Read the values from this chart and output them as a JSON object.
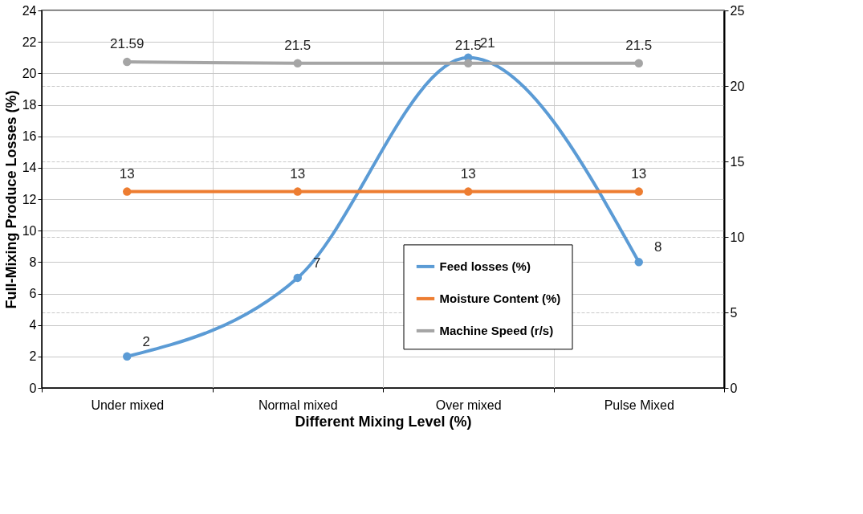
{
  "chart_data": {
    "type": "line",
    "xlabel": "Different Mixing Level (%)",
    "ylabel": "Full-Mixing Produce Losses (%)",
    "categories": [
      "Under mixed",
      "Normal mixed",
      "Over mixed",
      "Pulse Mixed"
    ],
    "series": [
      {
        "name": "Feed losses (%)",
        "color": "#5b9bd5",
        "values": [
          2,
          7,
          21,
          8
        ]
      },
      {
        "name": "Moisture Content (%)",
        "color": "#ed7d31",
        "values": [
          13,
          13,
          13,
          13
        ],
        "axis": "y2"
      },
      {
        "name": "Machine Speed (r/s)",
        "color": "#a5a5a5",
        "values": [
          21.59,
          21.5,
          21.5,
          21.5
        ],
        "axis": "y2"
      }
    ],
    "ylim": [
      0,
      24
    ],
    "yticks": [
      0,
      2,
      4,
      6,
      8,
      10,
      12,
      14,
      16,
      18,
      20,
      22,
      24
    ],
    "y2lim": [
      0,
      25
    ],
    "y2ticks": [
      0,
      5,
      10,
      15,
      20,
      25
    ],
    "data_labels": true,
    "grid": true,
    "legend": "bottom right",
    "marker": "circle",
    "line_style": "solid"
  }
}
